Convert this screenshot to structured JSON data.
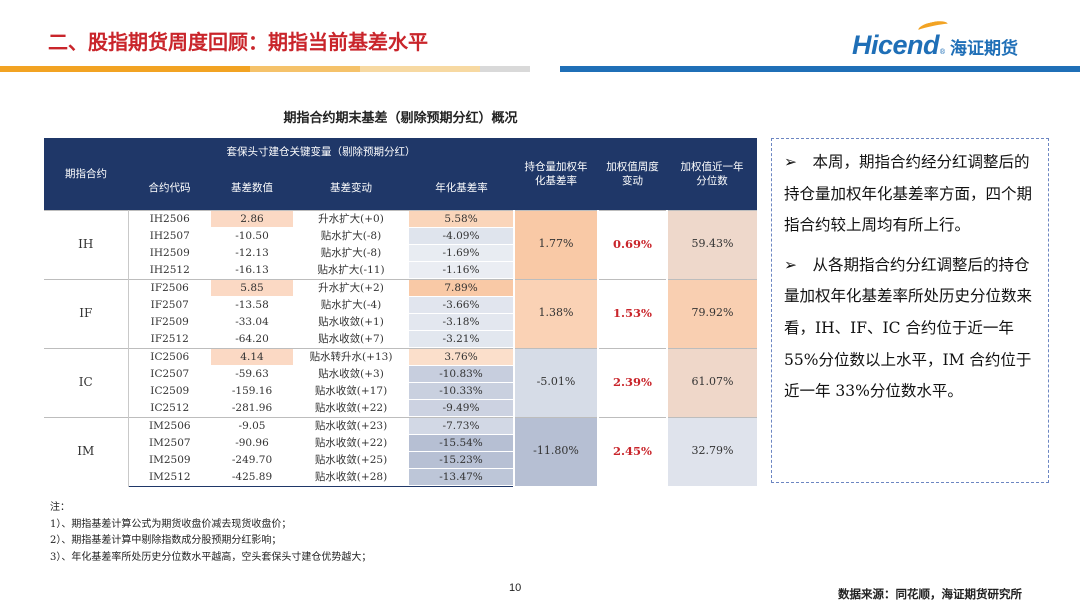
{
  "header": {
    "title": "二、股指期货周度回顾：期指当前基差水平",
    "logo_brand": "Hicend",
    "logo_reg": "®",
    "logo_cn": "海证期货"
  },
  "table": {
    "caption": "期指合约期末基差（剔除预期分红）概况",
    "col_group_label": "期指合约",
    "super_header": "套保头寸建仓关键变量（剔除预期分红）",
    "columns": [
      "合约代码",
      "基差数值",
      "基差变动",
      "年化基差率",
      "持仓量加权年化基差率",
      "加权值周度变动",
      "加权值近一年分位数"
    ],
    "groups": [
      {
        "name": "IH",
        "weighted_rate": "1.77%",
        "weekly_change": "0.69%",
        "percentile": "59.43%",
        "rows": [
          {
            "code": "IH2506",
            "basis": "2.86",
            "change": "升水扩大(+0)",
            "annual": "5.58%"
          },
          {
            "code": "IH2507",
            "basis": "-10.50",
            "change": "贴水扩大(-8)",
            "annual": "-4.09%"
          },
          {
            "code": "IH2509",
            "basis": "-12.13",
            "change": "贴水扩大(-8)",
            "annual": "-1.69%"
          },
          {
            "code": "IH2512",
            "basis": "-16.13",
            "change": "贴水扩大(-11)",
            "annual": "-1.16%"
          }
        ]
      },
      {
        "name": "IF",
        "weighted_rate": "1.38%",
        "weekly_change": "1.53%",
        "percentile": "79.92%",
        "rows": [
          {
            "code": "IF2506",
            "basis": "5.85",
            "change": "升水扩大(+2)",
            "annual": "7.89%"
          },
          {
            "code": "IF2507",
            "basis": "-13.58",
            "change": "贴水扩大(-4)",
            "annual": "-3.66%"
          },
          {
            "code": "IF2509",
            "basis": "-33.04",
            "change": "贴水收敛(+1)",
            "annual": "-3.18%"
          },
          {
            "code": "IF2512",
            "basis": "-64.20",
            "change": "贴水收敛(+7)",
            "annual": "-3.21%"
          }
        ]
      },
      {
        "name": "IC",
        "weighted_rate": "-5.01%",
        "weekly_change": "2.39%",
        "percentile": "61.07%",
        "rows": [
          {
            "code": "IC2506",
            "basis": "4.14",
            "change": "贴水转升水(+13)",
            "annual": "3.76%"
          },
          {
            "code": "IC2507",
            "basis": "-59.63",
            "change": "贴水收敛(+3)",
            "annual": "-10.83%"
          },
          {
            "code": "IC2509",
            "basis": "-159.16",
            "change": "贴水收敛(+17)",
            "annual": "-10.33%"
          },
          {
            "code": "IC2512",
            "basis": "-281.96",
            "change": "贴水收敛(+22)",
            "annual": "-9.49%"
          }
        ]
      },
      {
        "name": "IM",
        "weighted_rate": "-11.80%",
        "weekly_change": "2.45%",
        "percentile": "32.79%",
        "rows": [
          {
            "code": "IM2506",
            "basis": "-9.05",
            "change": "贴水收敛(+23)",
            "annual": "-7.73%"
          },
          {
            "code": "IM2507",
            "basis": "-90.96",
            "change": "贴水收敛(+22)",
            "annual": "-15.54%"
          },
          {
            "code": "IM2509",
            "basis": "-249.70",
            "change": "贴水收敛(+25)",
            "annual": "-15.23%"
          },
          {
            "code": "IM2512",
            "basis": "-425.89",
            "change": "贴水收敛(+28)",
            "annual": "-13.47%"
          }
        ]
      }
    ]
  },
  "commentary": [
    "➢　本周，期指合约经分红调整后的持仓量加权年化基差率方面，四个期指合约较上周均有所上行。",
    "➢　从各期指合约分红调整后的持仓量加权年化基差率所处历史分位数来看，IH、IF、IC 合约位于近一年 55%分位数以上水平，IM 合约位于近一年 33%分位数水平。"
  ],
  "footnotes": [
    "注：",
    "1）、期指基差计算公式为期货收盘价减去现货收盘价；",
    "2）、期指基差计算中剔除指数成分股预期分红影响；",
    "3）、年化基差率所处历史分位数水平越高，空头套保头寸建仓优势越大；"
  ],
  "page_number": "10",
  "source": "数据来源：同花顺，海证期货研究所",
  "colors": {
    "title_red": "#c9252b",
    "brand_blue": "#1f6fb7",
    "header_navy": "#1f3768",
    "dashed_border": "#6c86c2"
  }
}
